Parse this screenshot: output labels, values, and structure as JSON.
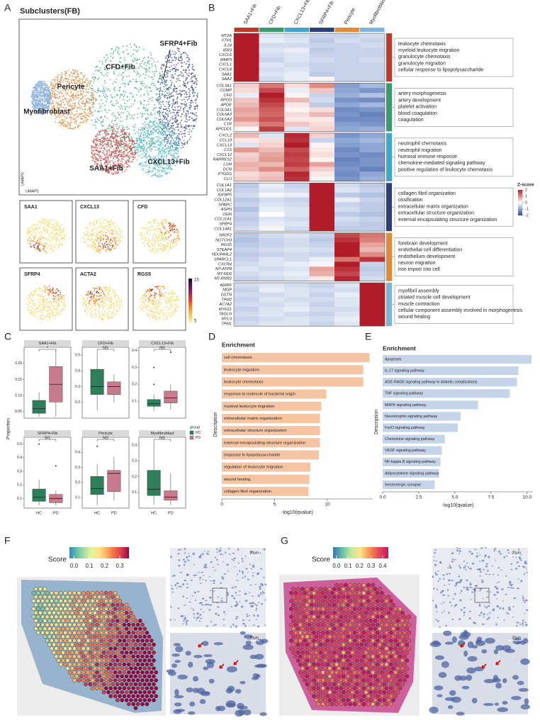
{
  "panel_letters": [
    "A",
    "B",
    "C",
    "D",
    "E",
    "F",
    "G"
  ],
  "umap": {
    "title": "Subclusters(FB)",
    "x_label": "UMAP1",
    "y_label": "UMAP2",
    "clusters": [
      "SFRP4+Fib",
      "CFD+Fib",
      "Pericyte",
      "Myofibroblast",
      "SAA1+Fib",
      "CXCL13+Fib"
    ],
    "feature_genes": [
      "SAA1",
      "CXCL13",
      "CFD",
      "SFRP4",
      "ACTA2",
      "RGS5"
    ],
    "colorbar_ticks": [
      15,
      5
    ]
  },
  "heatmap": {
    "columns": [
      {
        "name": "SAA1+Fib",
        "color": "#c0392b"
      },
      {
        "name": "CFD+Fib",
        "color": "#3a9a6e"
      },
      {
        "name": "CXCL13+Fib",
        "color": "#3fa7c7"
      },
      {
        "name": "SFRP4+Fib",
        "color": "#2f3f7a"
      },
      {
        "name": "Pericyte",
        "color": "#e08a3c"
      },
      {
        "name": "Myofibroblast",
        "color": "#7fb3d9"
      }
    ],
    "zlim": [
      -2,
      2
    ],
    "legend_title": "Z-score",
    "legend_ticks": [
      2,
      1,
      0,
      -1,
      -2
    ],
    "modules": [
      {
        "color": "#c0392b",
        "genes": [
          "MT2A",
          "FTH1",
          "IL24",
          "IER3",
          "CXCL6",
          "MMP3",
          "CXCL1",
          "CXCL8",
          "SAA1",
          "SAA2"
        ],
        "z": [
          [
            2.1,
            -0.3,
            -0.4,
            -0.5,
            -0.5,
            -0.4
          ],
          [
            2.0,
            -0.2,
            -0.3,
            -0.6,
            -0.4,
            -0.5
          ],
          [
            2.2,
            -0.4,
            -0.4,
            -0.5,
            -0.5,
            -0.4
          ],
          [
            2.1,
            -0.3,
            -0.2,
            -0.6,
            -0.5,
            -0.5
          ],
          [
            2.2,
            -0.4,
            -0.3,
            -0.5,
            -0.5,
            -0.5
          ],
          [
            2.1,
            -0.5,
            -0.3,
            -0.4,
            -0.5,
            -0.4
          ],
          [
            2.2,
            -0.3,
            -0.4,
            -0.5,
            -0.5,
            -0.5
          ],
          [
            2.2,
            -0.4,
            -0.3,
            -0.5,
            -0.5,
            -0.5
          ],
          [
            2.1,
            -0.3,
            -0.2,
            -0.6,
            -0.5,
            -0.5
          ],
          [
            2.0,
            -0.4,
            -0.2,
            0.1,
            -0.5,
            -0.5
          ]
        ],
        "terms": [
          "leukocyte chemotaxis",
          "myeloid leukocyte migration",
          "granulocyte chemotaxis",
          "granulocyte migration",
          "cellular response to lipopolysaccharide"
        ]
      },
      {
        "color": "#3a9a6e",
        "genes": [
          "COL3A1",
          "COMP",
          "CFD",
          "APOD",
          "APOE",
          "COL6A1",
          "COL6A3",
          "COL6A2",
          "C1R",
          "APCDD1"
        ],
        "z": [
          [
            0.4,
            1.2,
            0.3,
            1.0,
            -1.1,
            -0.8
          ],
          [
            0.3,
            1.6,
            -0.2,
            0.5,
            -1.0,
            -1.2
          ],
          [
            -0.2,
            2.2,
            0.1,
            -0.5,
            -0.9,
            -0.7
          ],
          [
            0.5,
            1.8,
            0.6,
            -0.4,
            -1.2,
            -1.3
          ],
          [
            0.6,
            1.6,
            0.2,
            -0.6,
            -1.0,
            -0.8
          ],
          [
            0.8,
            1.4,
            0.1,
            0.3,
            -1.3,
            -1.2
          ],
          [
            0.7,
            1.3,
            0.3,
            0.6,
            -1.2,
            -1.4
          ],
          [
            0.9,
            1.5,
            0.2,
            0.2,
            -1.3,
            -1.3
          ],
          [
            0.5,
            1.2,
            0.5,
            0.3,
            -1.1,
            -1.2
          ],
          [
            0.1,
            1.7,
            -0.3,
            0.4,
            -1.0,
            -0.9
          ]
        ],
        "terms": [
          "artery morphogenesis",
          "artery development",
          "platelet activation",
          "blood coagulation",
          "coagulation"
        ]
      },
      {
        "color": "#3fa7c7",
        "genes": [
          "CXCL2",
          "CCL19",
          "CXCL13",
          "C1S",
          "CXCL12",
          "RARRES2",
          "LUM",
          "DCN",
          "PTGDS",
          "CLU"
        ],
        "z": [
          [
            0.6,
            -0.3,
            1.9,
            0.4,
            -1.2,
            -1.0
          ],
          [
            0.2,
            0.3,
            1.8,
            -0.5,
            -1.0,
            -0.8
          ],
          [
            -0.3,
            0.4,
            2.1,
            0.1,
            -1.1,
            -1.0
          ],
          [
            0.9,
            0.6,
            1.6,
            0.2,
            -1.3,
            -1.0
          ],
          [
            0.4,
            0.8,
            1.7,
            0.3,
            -1.2,
            -1.3
          ],
          [
            0.5,
            0.9,
            1.6,
            0.1,
            -1.4,
            -1.2
          ],
          [
            0.7,
            0.6,
            1.7,
            0.8,
            -1.3,
            -1.2
          ],
          [
            0.6,
            1.0,
            1.4,
            0.4,
            -1.2,
            -1.4
          ],
          [
            0.3,
            0.5,
            1.9,
            0.2,
            -1.3,
            -1.0
          ],
          [
            0.4,
            0.6,
            1.8,
            0.1,
            -1.2,
            -0.9
          ]
        ],
        "terms": [
          "neutrophil chemotaxis",
          "neutrophil migration",
          "humoral immune response",
          "chemokine-mediated signaling pathway",
          "positive regulation of leukocyte chemotaxis"
        ]
      },
      {
        "color": "#2f3f7a",
        "genes": [
          "COL1A1",
          "COL1A2",
          "IGFBP5",
          "COL12A1",
          "SPARC",
          "ASPN",
          "OGN",
          "COL11A1",
          "SFRP4",
          "COL14A1"
        ],
        "z": [
          [
            -0.6,
            -0.2,
            -0.5,
            2.2,
            -0.4,
            -0.6
          ],
          [
            -0.5,
            -0.3,
            -0.4,
            2.2,
            -0.3,
            -0.5
          ],
          [
            -0.4,
            -0.1,
            -0.2,
            2.1,
            -0.6,
            -0.7
          ],
          [
            -0.6,
            -0.4,
            -0.5,
            2.2,
            -0.2,
            -0.5
          ],
          [
            -0.5,
            -0.3,
            -0.4,
            2.1,
            -0.5,
            -0.6
          ],
          [
            -0.7,
            -0.2,
            -0.3,
            2.2,
            -0.4,
            -0.6
          ],
          [
            -0.5,
            0.0,
            -0.3,
            2.1,
            -0.6,
            -0.7
          ],
          [
            -0.6,
            -0.3,
            -0.4,
            2.2,
            -0.4,
            -0.5
          ],
          [
            -0.5,
            -0.2,
            -0.3,
            2.2,
            -0.5,
            -0.6
          ],
          [
            -0.4,
            -0.1,
            -0.4,
            2.1,
            -0.6,
            -0.6
          ]
        ],
        "terms": [
          "collagen fibril organization",
          "ossification",
          "extracellular matrix organization",
          "extracellular structure organization",
          "external encapsulating structure organization"
        ]
      },
      {
        "color": "#e08a3c",
        "genes": [
          "NR2F2",
          "NOTCH3",
          "RGS5",
          "STEAP4",
          "NDUFA4L2",
          "SPARCL1",
          "CXCR4",
          "MT-ATP8",
          "MT-ND6",
          "MT-RNR2"
        ],
        "z": [
          [
            -0.6,
            -0.4,
            -0.3,
            -0.5,
            1.6,
            1.2
          ],
          [
            -0.7,
            -0.5,
            -0.4,
            -0.6,
            1.8,
            1.1
          ],
          [
            -0.6,
            -0.5,
            -0.4,
            -0.5,
            2.2,
            0.8
          ],
          [
            -0.5,
            -0.4,
            -0.3,
            -0.4,
            2.0,
            0.6
          ],
          [
            -0.6,
            -0.5,
            -0.4,
            -0.5,
            2.1,
            1.0
          ],
          [
            -0.5,
            -0.3,
            -0.4,
            -0.2,
            1.2,
            1.8
          ],
          [
            -0.4,
            -0.3,
            -0.2,
            -0.1,
            2.3,
            -0.5
          ],
          [
            -0.3,
            -0.4,
            -0.3,
            0.8,
            1.8,
            -0.6
          ],
          [
            -0.4,
            -0.3,
            -0.2,
            0.7,
            1.6,
            -0.5
          ],
          [
            -0.5,
            -0.4,
            -0.3,
            0.2,
            1.9,
            -0.4
          ]
        ],
        "terms": [
          "forebrain development",
          "endothelial cell differentiation",
          "endothelium development",
          "neuron migration",
          "iron import into cell"
        ]
      },
      {
        "color": "#7fb3d9",
        "genes": [
          "ADIRF",
          "MGP",
          "DSTN",
          "TPM2",
          "ACTA2",
          "MYH11",
          "TAGLN",
          "MYL9",
          "TPM1"
        ],
        "z": [
          [
            -0.4,
            -0.3,
            -0.4,
            -0.5,
            -0.3,
            2.3
          ],
          [
            -0.5,
            -0.2,
            -0.3,
            -0.4,
            -0.4,
            2.2
          ],
          [
            -0.4,
            -0.4,
            -0.3,
            -0.5,
            -0.2,
            2.3
          ],
          [
            -0.5,
            -0.3,
            -0.4,
            -0.4,
            -0.3,
            2.2
          ],
          [
            -0.4,
            -0.4,
            -0.3,
            -0.5,
            -0.3,
            2.3
          ],
          [
            -0.5,
            -0.3,
            -0.2,
            -0.4,
            -0.4,
            2.2
          ],
          [
            -0.4,
            -0.3,
            -0.4,
            -0.5,
            -0.3,
            2.3
          ],
          [
            -0.5,
            -0.4,
            -0.3,
            -0.4,
            -0.2,
            2.2
          ],
          [
            -0.4,
            -0.3,
            -0.3,
            -0.5,
            -0.3,
            2.3
          ]
        ],
        "terms": [
          "myofibril assembly",
          "striated muscle cell development",
          "muscle contraction",
          "cellular component assembly involved in morphogenesis",
          "wound healing"
        ]
      }
    ]
  },
  "chart_data": [
    {
      "type": "box",
      "y_label": "Proportion",
      "legend_title": "group",
      "categories": [
        "HC",
        "PD"
      ],
      "groups": [
        {
          "name": "HC",
          "color": "#2e7d5b"
        },
        {
          "name": "PD",
          "color": "#c97b8e"
        }
      ],
      "panels": [
        {
          "title": "SAA1+Fib",
          "significance": "*",
          "ylim": [
            0.03,
            0.25
          ],
          "yticks": [
            {
              "value": 0.05,
              "label": "0.05"
            },
            {
              "value": 0.1,
              "label": "0.10"
            },
            {
              "value": 0.15,
              "label": "0.15"
            },
            {
              "value": 0.2,
              "label": "0.20"
            }
          ],
          "boxes": [
            {
              "min": 0.035,
              "q1": 0.045,
              "median": 0.06,
              "q3": 0.085,
              "max": 0.11,
              "outliers": []
            },
            {
              "min": 0.035,
              "q1": 0.08,
              "median": 0.135,
              "q3": 0.19,
              "max": 0.245,
              "outliers": []
            }
          ]
        },
        {
          "title": "CFD+Fib",
          "significance": "NS",
          "ylim": [
            0.1,
            0.55
          ],
          "yticks": [
            0.2,
            0.3,
            0.4,
            0.5
          ],
          "boxes": [
            {
              "min": 0.15,
              "q1": 0.25,
              "median": 0.3,
              "q3": 0.41,
              "max": 0.52,
              "outliers": []
            },
            {
              "min": 0.2,
              "q1": 0.25,
              "median": 0.3,
              "q3": 0.33,
              "max": 0.38,
              "outliers": []
            }
          ]
        },
        {
          "title": "CXCL13+Fib",
          "significance": "NS",
          "ylim": [
            0,
            0.42
          ],
          "yticks": [
            0.1,
            0.2,
            0.3,
            0.4
          ],
          "boxes": [
            {
              "min": 0.04,
              "q1": 0.07,
              "median": 0.085,
              "q3": 0.11,
              "max": 0.14,
              "outliers": [
                0.2,
                0.3
              ]
            },
            {
              "min": 0.05,
              "q1": 0.09,
              "median": 0.12,
              "q3": 0.16,
              "max": 0.2,
              "outliers": [
                0.39
              ]
            }
          ]
        },
        {
          "title": "SFRP4+Fib",
          "significance": "NS",
          "ylim": [
            0.03,
            0.55
          ],
          "yticks": [
            0.1,
            0.2,
            0.3,
            0.4,
            0.5
          ],
          "boxes": [
            {
              "min": 0.05,
              "q1": 0.08,
              "median": 0.11,
              "q3": 0.17,
              "max": 0.24,
              "outliers": [
                0.5
              ]
            },
            {
              "min": 0.05,
              "q1": 0.07,
              "median": 0.1,
              "q3": 0.13,
              "max": 0.16,
              "outliers": [
                0.34
              ]
            }
          ]
        },
        {
          "title": "Pericyte",
          "significance": "NS",
          "ylim": [
            0.03,
            0.5
          ],
          "yticks": [
            0.1,
            0.2,
            0.3,
            0.4
          ],
          "boxes": [
            {
              "min": 0.05,
              "q1": 0.12,
              "median": 0.16,
              "q3": 0.24,
              "max": 0.32,
              "outliers": [
                0.44
              ]
            },
            {
              "min": 0.08,
              "q1": 0.14,
              "median": 0.26,
              "q3": 0.28,
              "max": 0.37,
              "outliers": []
            }
          ]
        },
        {
          "title": "Myofibroblast",
          "significance": "NS",
          "ylim": [
            0,
            0.45
          ],
          "yticks": [
            0.1,
            0.2,
            0.3,
            0.4
          ],
          "boxes": [
            {
              "min": 0.02,
              "q1": 0.08,
              "median": 0.12,
              "q3": 0.24,
              "max": 0.42,
              "outliers": []
            },
            {
              "min": 0.02,
              "q1": 0.05,
              "median": 0.07,
              "q3": 0.11,
              "max": 0.22,
              "outliers": []
            }
          ]
        }
      ]
    },
    {
      "type": "bar",
      "orientation": "horizontal",
      "title": "Enrichment",
      "x_label": "-log10(qvalue)",
      "y_label": "Description",
      "color": "#f5c4a2",
      "categories": [
        "cell chemotaxis",
        "leukocyte migration",
        "leukocyte chemotaxis",
        "response to molecule of bacterial origin",
        "myeloid leukocyte migration",
        "extracellular matrix organization",
        "extracellular structure organization",
        "external encapsulating structure organization",
        "response to lipopolysaccharide",
        "regulation of leukocyte migration",
        "wound healing",
        "collagen fibril organization"
      ],
      "values": [
        14.0,
        13.4,
        13.4,
        9.9,
        9.4,
        9.3,
        9.3,
        9.3,
        9.2,
        8.4,
        8.3,
        8.2
      ],
      "xlim": [
        0,
        14.3
      ],
      "xticks": [
        0,
        5,
        10
      ]
    },
    {
      "type": "bar",
      "orientation": "horizontal",
      "title": "Enrichment",
      "x_label": "-log10(qvalue)",
      "y_label": "Description",
      "color": "#c6d4ea",
      "categories": [
        "Apoptosis",
        "IL-17 signaling pathway",
        "AGE-RAGE signaling pathway in diabetic complications",
        "TNF signaling pathway",
        "MAPK signaling pathway",
        "Neurotrophin signaling pathway",
        "FoxO signaling pathway",
        "Chemokine signaling pathway",
        "VEGF signaling pathway",
        "NF-kappa B signaling pathway",
        "Adipocytokine signaling pathway",
        "Serotonergic synapse"
      ],
      "values": [
        10.3,
        9.4,
        9.3,
        8.8,
        6.6,
        5.4,
        5.2,
        4.3,
        4.1,
        4.0,
        3.9,
        3.6
      ],
      "xlim": [
        0,
        10.4
      ],
      "xticks": [
        {
          "value": 0,
          "label": "0.0"
        },
        2.5,
        {
          "value": 5,
          "label": "5.0"
        },
        7.5,
        {
          "value": 10,
          "label": "10.0"
        }
      ]
    }
  ],
  "spatial": [
    {
      "legend_title": "Score",
      "clim": [
        -0.03,
        0.36
      ],
      "ticks": [
        {
          "value": 0,
          "label": "0.0"
        },
        0.1,
        0.2,
        0.3
      ],
      "scale_bar": "20μm"
    },
    {
      "legend_title": "Score",
      "clim": [
        -0.03,
        0.45
      ],
      "ticks": [
        {
          "value": 0,
          "label": "0.0"
        },
        0.1,
        0.2,
        0.3,
        0.4
      ],
      "scale_bar": "20μm"
    }
  ]
}
